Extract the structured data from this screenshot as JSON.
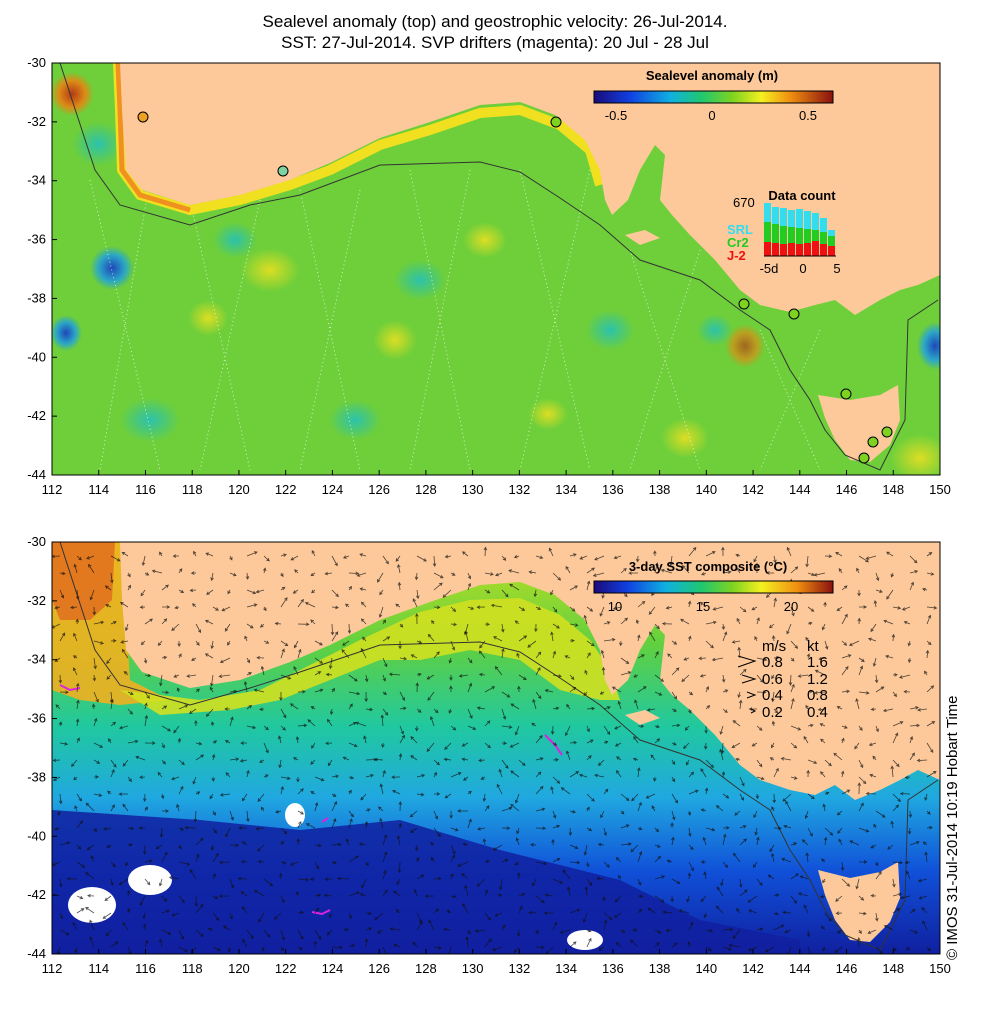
{
  "titles": {
    "line1": "Sealevel anomaly (top) and geostrophic velocity: 26-Jul-2014.",
    "line2": "SST: 27-Jul-2014. SVP drifters (magenta): 20 Jul - 28 Jul"
  },
  "axes": {
    "lon_ticks": [
      "112",
      "114",
      "116",
      "118",
      "120",
      "122",
      "124",
      "126",
      "128",
      "130",
      "132",
      "134",
      "136",
      "138",
      "140",
      "142",
      "144",
      "146",
      "148",
      "150"
    ],
    "lat_ticks": [
      "-30",
      "-32",
      "-34",
      "-36",
      "-38",
      "-40",
      "-42",
      "-44"
    ]
  },
  "top_panel": {
    "colorbar": {
      "title": "Sealevel anomaly (m)",
      "ticks": [
        "-0.5",
        "0",
        "0.5"
      ]
    },
    "data_count": {
      "title": "Data count",
      "max_label": "670",
      "x_ticks": [
        "-5d",
        "0",
        "5"
      ],
      "legend": [
        {
          "label": "SRL",
          "color": "#33ddee"
        },
        {
          "label": "Cr2",
          "color": "#22cc22"
        },
        {
          "label": "J-2",
          "color": "#ee1111"
        }
      ]
    }
  },
  "bottom_panel": {
    "colorbar": {
      "title": "3-day SST composite (°C)",
      "ticks": [
        "10",
        "15",
        "20"
      ]
    },
    "velocity_key": {
      "header_ms": "m/s",
      "header_kt": "kt",
      "rows": [
        {
          "ms": "0.8",
          "kt": "1.6"
        },
        {
          "ms": "0.6",
          "kt": "1.2"
        },
        {
          "ms": "0.4",
          "kt": "0.8"
        },
        {
          "ms": "0.2",
          "kt": "0.4"
        }
      ]
    }
  },
  "credit": "© IMOS 31-Jul-2014 10:19 Hobart Time",
  "colors": {
    "land": "#fdc99a",
    "ocean_mid": "#55cc33",
    "magenta": "#dd22dd"
  }
}
